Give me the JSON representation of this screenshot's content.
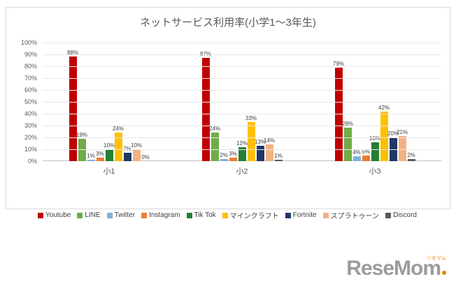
{
  "chart_data": {
    "type": "bar",
    "title": "ネットサービス利用率(小学1〜3年生)",
    "categories": [
      "小1",
      "小2",
      "小3"
    ],
    "series": [
      {
        "name": "Youtube",
        "color": "#c00000",
        "values": [
          88,
          87,
          79
        ]
      },
      {
        "name": "LINE",
        "color": "#70ad47",
        "values": [
          19,
          24,
          28
        ]
      },
      {
        "name": "Twitter",
        "color": "#7eb1dd",
        "values": [
          1,
          2,
          4
        ]
      },
      {
        "name": "Instagram",
        "color": "#ed7d31",
        "values": [
          3,
          3,
          5
        ]
      },
      {
        "name": "Tik Tok",
        "color": "#237f33",
        "values": [
          10,
          12,
          16
        ]
      },
      {
        "name": "マインクラフト",
        "color": "#ffc000",
        "values": [
          24,
          33,
          42
        ]
      },
      {
        "name": "Fortnite",
        "color": "#203864",
        "values": [
          7,
          13,
          20
        ]
      },
      {
        "name": "スプラトゥーン",
        "color": "#f4b183",
        "values": [
          10,
          14,
          21
        ]
      },
      {
        "name": "Discord",
        "color": "#595959",
        "values": [
          0,
          1,
          2
        ]
      }
    ],
    "ylim": [
      0,
      100
    ],
    "ytick_step": 10,
    "yticks": [
      "0%",
      "10%",
      "20%",
      "30%",
      "40%",
      "50%",
      "60%",
      "70%",
      "80%",
      "90%",
      "100%"
    ],
    "grid": true,
    "legend_position": "bottom",
    "value_label_format": "{v}%"
  },
  "logo": {
    "text": "ReseMom",
    "ruby": "リセマム"
  }
}
